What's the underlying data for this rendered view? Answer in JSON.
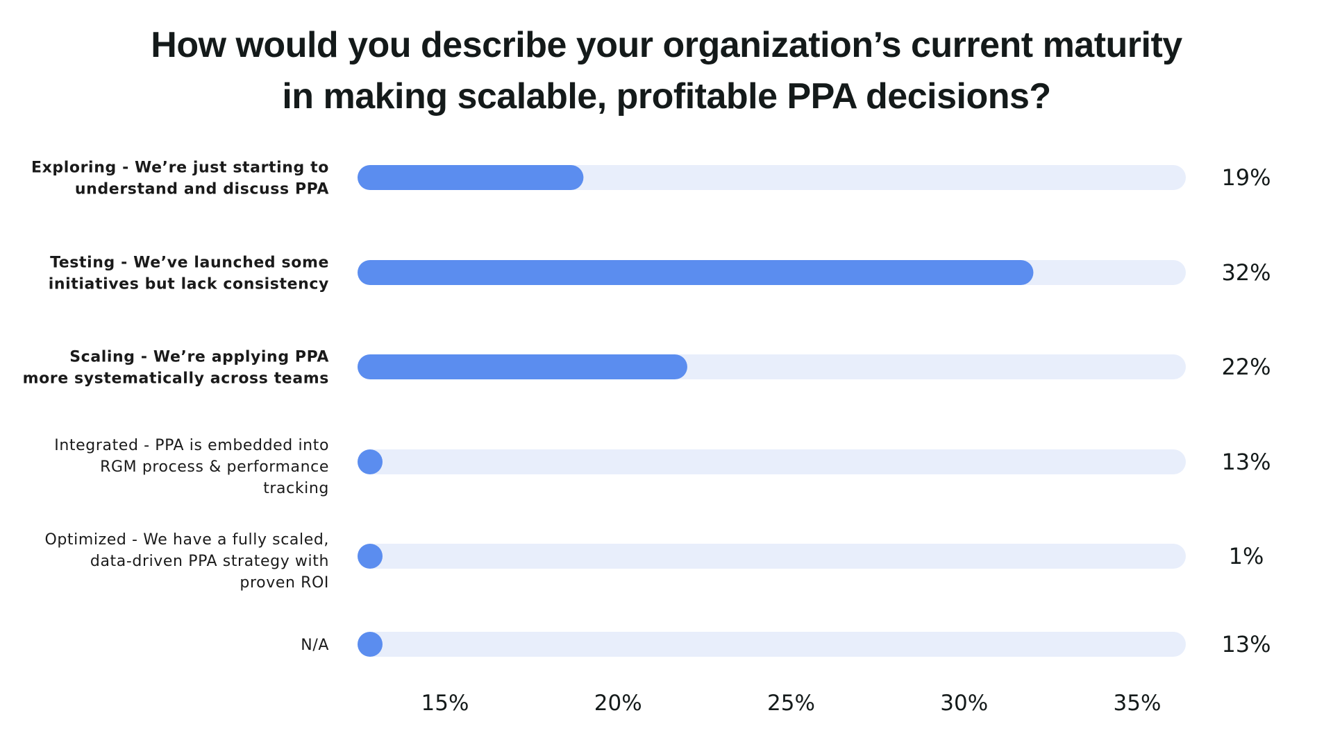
{
  "chart_data": {
    "type": "bar",
    "orientation": "horizontal",
    "title_lines": [
      "How would you describe your organization’s current maturity",
      "in making scalable, profitable PPA decisions?"
    ],
    "categories": [
      {
        "lines": [
          "Exploring - We’re just starting to",
          "understand and discuss PPA"
        ],
        "bold": true
      },
      {
        "lines": [
          "Testing - We’ve launched some",
          "initiatives but lack consistency"
        ],
        "bold": true
      },
      {
        "lines": [
          "Scaling - We’re applying PPA",
          "more systematically across teams"
        ],
        "bold": true
      },
      {
        "lines": [
          "Integrated - PPA is embedded into",
          "RGM process & performance",
          "tracking"
        ],
        "bold": false
      },
      {
        "lines": [
          "Optimized - We have a fully scaled,",
          "data-driven PPA strategy with",
          "proven ROI"
        ],
        "bold": false
      },
      {
        "lines": [
          "N/A"
        ],
        "bold": false
      }
    ],
    "values": [
      19,
      32,
      22,
      13,
      1,
      13
    ],
    "value_labels": [
      "19%",
      "32%",
      "22%",
      "13%",
      "1%",
      "13%"
    ],
    "x_ticks": [
      15,
      20,
      25,
      30,
      35
    ],
    "x_tick_labels": [
      "15%",
      "20%",
      "25%",
      "30%",
      "35%"
    ],
    "colors": {
      "bar": "#5b8def",
      "track": "#e8eefb"
    }
  }
}
